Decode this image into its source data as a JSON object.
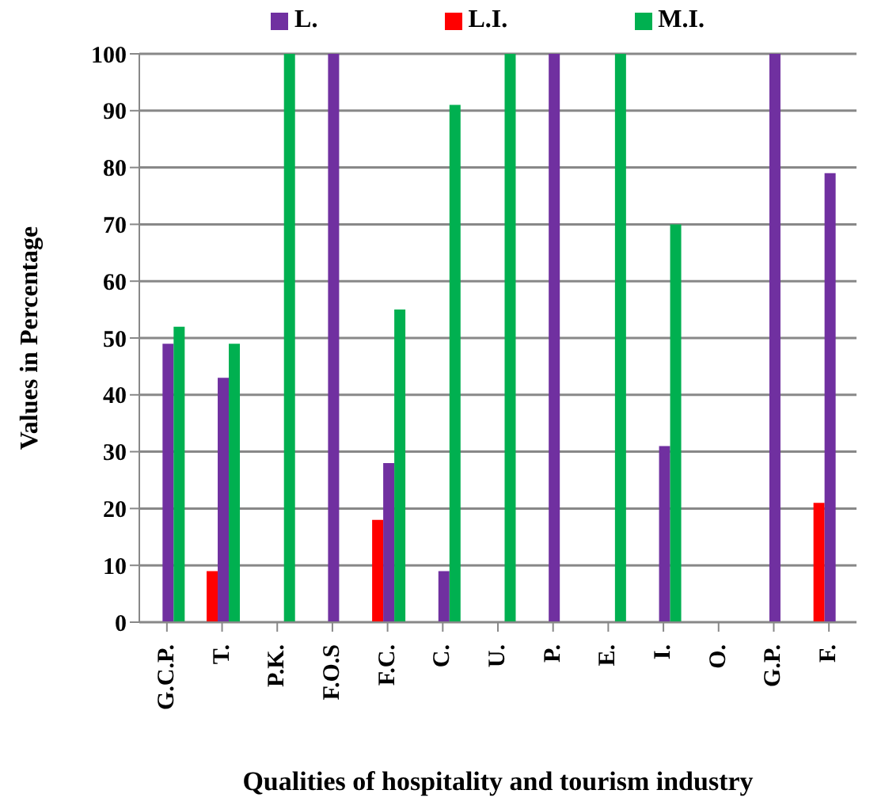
{
  "chart_data": {
    "type": "bar",
    "xlabel": "Qualities of hospitality and tourism industry",
    "ylabel": "Values in Percentage",
    "categories": [
      "G.C.P.",
      "T.",
      "P.K.",
      "F.O.S",
      "F.C.",
      "C.",
      "U.",
      "P.",
      "E.",
      "I.",
      "O.",
      "G.P.",
      "F."
    ],
    "series": [
      {
        "name": "L.I.",
        "color": "#ff0000",
        "values": [
          0,
          9,
          0,
          0,
          18,
          0,
          0,
          0,
          0,
          0,
          0,
          0,
          21
        ]
      },
      {
        "name": "L.",
        "color": "#7030a0",
        "values": [
          49,
          43,
          0,
          100,
          28,
          9,
          0,
          100,
          0,
          31,
          0,
          100,
          79
        ]
      },
      {
        "name": "M.I.",
        "color": "#00b050",
        "values": [
          52,
          49,
          100,
          0,
          55,
          91,
          100,
          0,
          100,
          70,
          0,
          0,
          0
        ]
      }
    ],
    "ylim": [
      0,
      100
    ],
    "yticks": [
      0,
      10,
      20,
      30,
      40,
      50,
      60,
      70,
      80,
      90,
      100
    ],
    "grid": "y",
    "legend": "top"
  }
}
